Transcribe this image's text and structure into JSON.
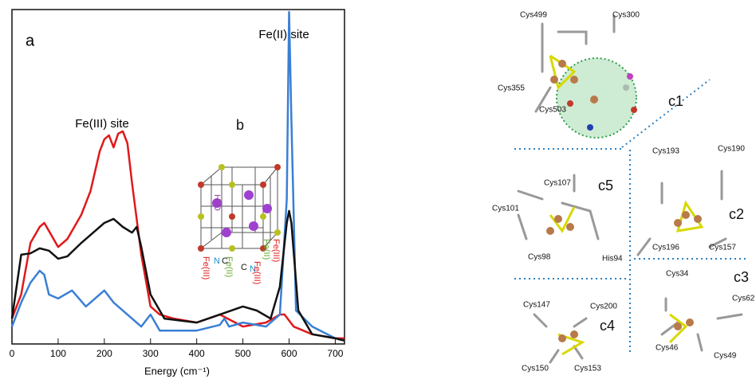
{
  "chart_data": {
    "type": "line",
    "panel_label": "a",
    "x_label": "Energy (cm⁻¹)",
    "xlim": [
      0,
      720
    ],
    "xticks": [
      0,
      100,
      200,
      300,
      400,
      500,
      600,
      700
    ],
    "ylim": [
      0,
      100
    ],
    "annotations": [
      "Fe(III) site",
      "Fe(II) site"
    ],
    "series": [
      {
        "color": "#e0191b",
        "x": [
          0,
          20,
          40,
          60,
          70,
          80,
          100,
          120,
          150,
          170,
          190,
          200,
          210,
          220,
          230,
          240,
          250,
          260,
          280,
          300,
          320,
          350,
          400,
          450,
          500,
          550,
          580,
          590,
          610,
          650,
          700,
          720
        ],
        "values": [
          7.6,
          14.8,
          30.2,
          35,
          36.2,
          33.8,
          29,
          31.4,
          38.6,
          45.7,
          57.6,
          61.2,
          62.4,
          58.8,
          62.9,
          63.6,
          60,
          48.1,
          26.7,
          11.2,
          8.8,
          7.6,
          6.4,
          8.8,
          5.2,
          6.4,
          8.8,
          8.8,
          5.2,
          2.9,
          1.7,
          1.7
        ]
      },
      {
        "color": "#3a7fd5",
        "x": [
          0,
          20,
          40,
          60,
          70,
          80,
          100,
          130,
          160,
          190,
          200,
          220,
          250,
          280,
          300,
          320,
          350,
          400,
          450,
          460,
          470,
          500,
          550,
          580,
          595,
          600,
          605,
          615,
          650,
          700,
          720
        ],
        "values": [
          5.2,
          12.4,
          18.3,
          21.9,
          20.7,
          14.8,
          13.6,
          16,
          11.2,
          14.8,
          16,
          12.4,
          8.8,
          5.2,
          8.8,
          4,
          4,
          4,
          5.7,
          7.6,
          5.2,
          6.4,
          5.2,
          8.8,
          43.3,
          99.3,
          67.1,
          10,
          5.2,
          1.7,
          1
        ]
      },
      {
        "color": "#111111",
        "x": [
          0,
          20,
          40,
          60,
          80,
          100,
          120,
          150,
          180,
          200,
          220,
          240,
          260,
          270,
          280,
          300,
          330,
          400,
          450,
          500,
          530,
          560,
          580,
          595,
          600,
          605,
          620,
          650,
          700,
          720
        ],
        "values": [
          7.6,
          26.7,
          27.1,
          28.6,
          27.9,
          25.5,
          26.2,
          30.2,
          33.8,
          36.2,
          37.4,
          35,
          33.3,
          35,
          29,
          14.8,
          7.6,
          6.4,
          8.8,
          11.2,
          10,
          7.6,
          17.1,
          36.2,
          39.8,
          36.2,
          10,
          2.9,
          1.7,
          1
        ]
      }
    ]
  },
  "panel_b": {
    "label": "b",
    "water": "H₂O",
    "bottom_labels": [
      "Fe(III)",
      "N",
      "C",
      "Fe(II)",
      "C",
      "N",
      "Fe(III)",
      "Fe(II)",
      "Fe(III)"
    ]
  },
  "panel_c": {
    "labels": [
      "c1",
      "c2",
      "c3",
      "c4",
      "c5"
    ],
    "residues": [
      "Cys499",
      "Cys300",
      "Cys355",
      "Cys503",
      "Cys193",
      "Cys190",
      "Cys196",
      "Cys157",
      "Cys34",
      "Cys62",
      "Cys46",
      "Cys49",
      "Cys147",
      "Cys200",
      "Cys150",
      "Cys153",
      "Cys107",
      "Cys101",
      "Cys98",
      "His94"
    ]
  }
}
